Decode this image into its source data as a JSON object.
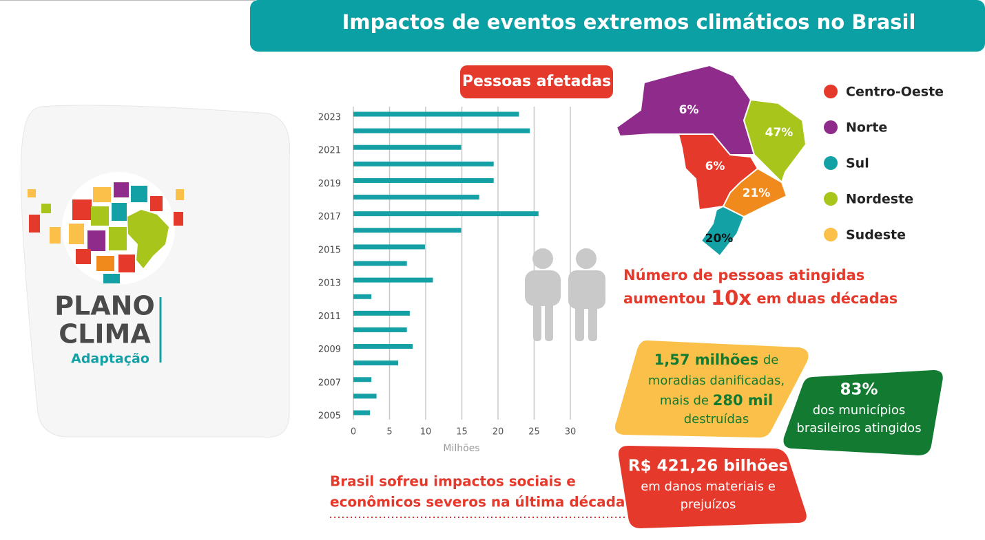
{
  "header": {
    "title": "Impactos de eventos extremos climáticos no Brasil"
  },
  "logo": {
    "line1": "PLANO",
    "line2": "CLIMA",
    "line3": "Adaptação"
  },
  "chart_data": {
    "type": "bar",
    "orientation": "horizontal",
    "title": "Pessoas afetadas",
    "xlabel": "Milhões",
    "categories": [
      "2023",
      null,
      "2021",
      null,
      "2019",
      null,
      "2017",
      null,
      "2015",
      null,
      "2013",
      null,
      "2011",
      null,
      "2009",
      null,
      "2007",
      null,
      "2005"
    ],
    "values": [
      22.9,
      24.4,
      14.9,
      19.4,
      19.4,
      17.4,
      25.6,
      14.9,
      9.9,
      7.4,
      11.0,
      2.5,
      7.8,
      7.4,
      8.2,
      6.2,
      2.5,
      3.2,
      2.3
    ],
    "color": "#14a0a4",
    "xlim": [
      0,
      30
    ],
    "xticks": [
      0,
      5,
      10,
      15,
      20,
      25,
      30
    ],
    "grid": true
  },
  "map": {
    "regions": [
      {
        "name": "Centro-Oeste",
        "color": "#e5392c",
        "map_color": "#e5392c",
        "value": 6,
        "value_label": "6%"
      },
      {
        "name": "Norte",
        "color": "#8e2b8b",
        "map_color": "#8e2b8b",
        "value": 6,
        "value_label": "6%"
      },
      {
        "name": "Sul",
        "color": "#13a1a5",
        "map_color": "#13a1a5",
        "value": 20,
        "value_label": "20%"
      },
      {
        "name": "Nordeste",
        "color": "#a8c51c",
        "map_color": "#a8c51c",
        "value": 47,
        "value_label": "47%"
      },
      {
        "name": "Sudeste",
        "color": "#fbc04a",
        "map_color": "#f08a1c",
        "value": 21,
        "value_label": "21%"
      }
    ]
  },
  "note": {
    "line1": "Número de pessoas atingidas",
    "line2_start": "aumentou",
    "highlight": "10x",
    "line2_end": "em duas décadas"
  },
  "callouts": {
    "housing": {
      "big": "1,57 milhões",
      "small": "de",
      "line2": "moradias danificadas,",
      "line3_start": "mais de",
      "big2": "280 mil",
      "line4": "destruídas"
    },
    "municipalities": {
      "big": "83%",
      "line2": "dos municípios",
      "line3": "brasileiros atingidos"
    },
    "damage": {
      "big": "R$ 421,26 bilhões",
      "line2": "em danos materiais e",
      "line3": "prejuízos"
    }
  },
  "footer": {
    "line1": "Brasil sofreu impactos sociais e",
    "line2": "econômicos severos na última década"
  }
}
